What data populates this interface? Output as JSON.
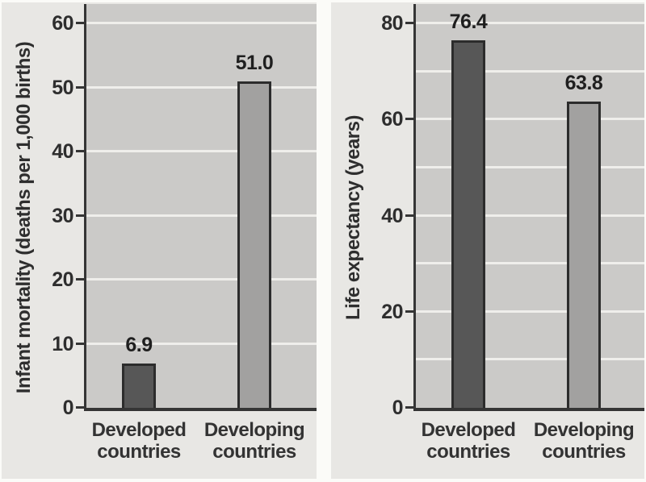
{
  "colors": {
    "outer_background": "#e8e7e4",
    "plot_background": "#cbcac8",
    "gridline": "#efeeeb",
    "axis": "#353535",
    "text": "#2b2b2b",
    "page_margin": "#fbfbf8",
    "bar_developed": "#575757",
    "bar_developing": "#a2a1a0",
    "bar_border": "#2c2c2c"
  },
  "chart_data": [
    {
      "type": "bar",
      "title": "",
      "ylabel": "Infant mortality (deaths per 1,000 births)",
      "xlabel": "",
      "categories": [
        "Developed countries",
        "Developing countries"
      ],
      "category_lines": [
        [
          "Developed",
          "countries"
        ],
        [
          "Developing",
          "countries"
        ]
      ],
      "values": [
        6.9,
        51.0
      ],
      "value_labels": [
        "6.9",
        "51.0"
      ],
      "ylim": [
        0,
        60
      ],
      "yticks": [
        0,
        10,
        20,
        30,
        40,
        50,
        60
      ],
      "gridlines": [
        10,
        20,
        30,
        40,
        50,
        60
      ],
      "grid": true,
      "legend": false,
      "bar_colors": [
        "#575757",
        "#a2a1a0"
      ]
    },
    {
      "type": "bar",
      "title": "",
      "ylabel": "Life expectancy (years)",
      "xlabel": "",
      "categories": [
        "Developed countries",
        "Developing countries"
      ],
      "category_lines": [
        [
          "Developed",
          "countries"
        ],
        [
          "Developing",
          "countries"
        ]
      ],
      "values": [
        76.4,
        63.8
      ],
      "value_labels": [
        "76.4",
        "63.8"
      ],
      "ylim": [
        0,
        80
      ],
      "yticks": [
        0,
        20,
        40,
        60,
        80
      ],
      "gridlines": [
        10,
        20,
        30,
        40,
        50,
        60,
        70,
        80
      ],
      "grid": true,
      "legend": false,
      "bar_colors": [
        "#575757",
        "#a2a1a0"
      ]
    }
  ]
}
